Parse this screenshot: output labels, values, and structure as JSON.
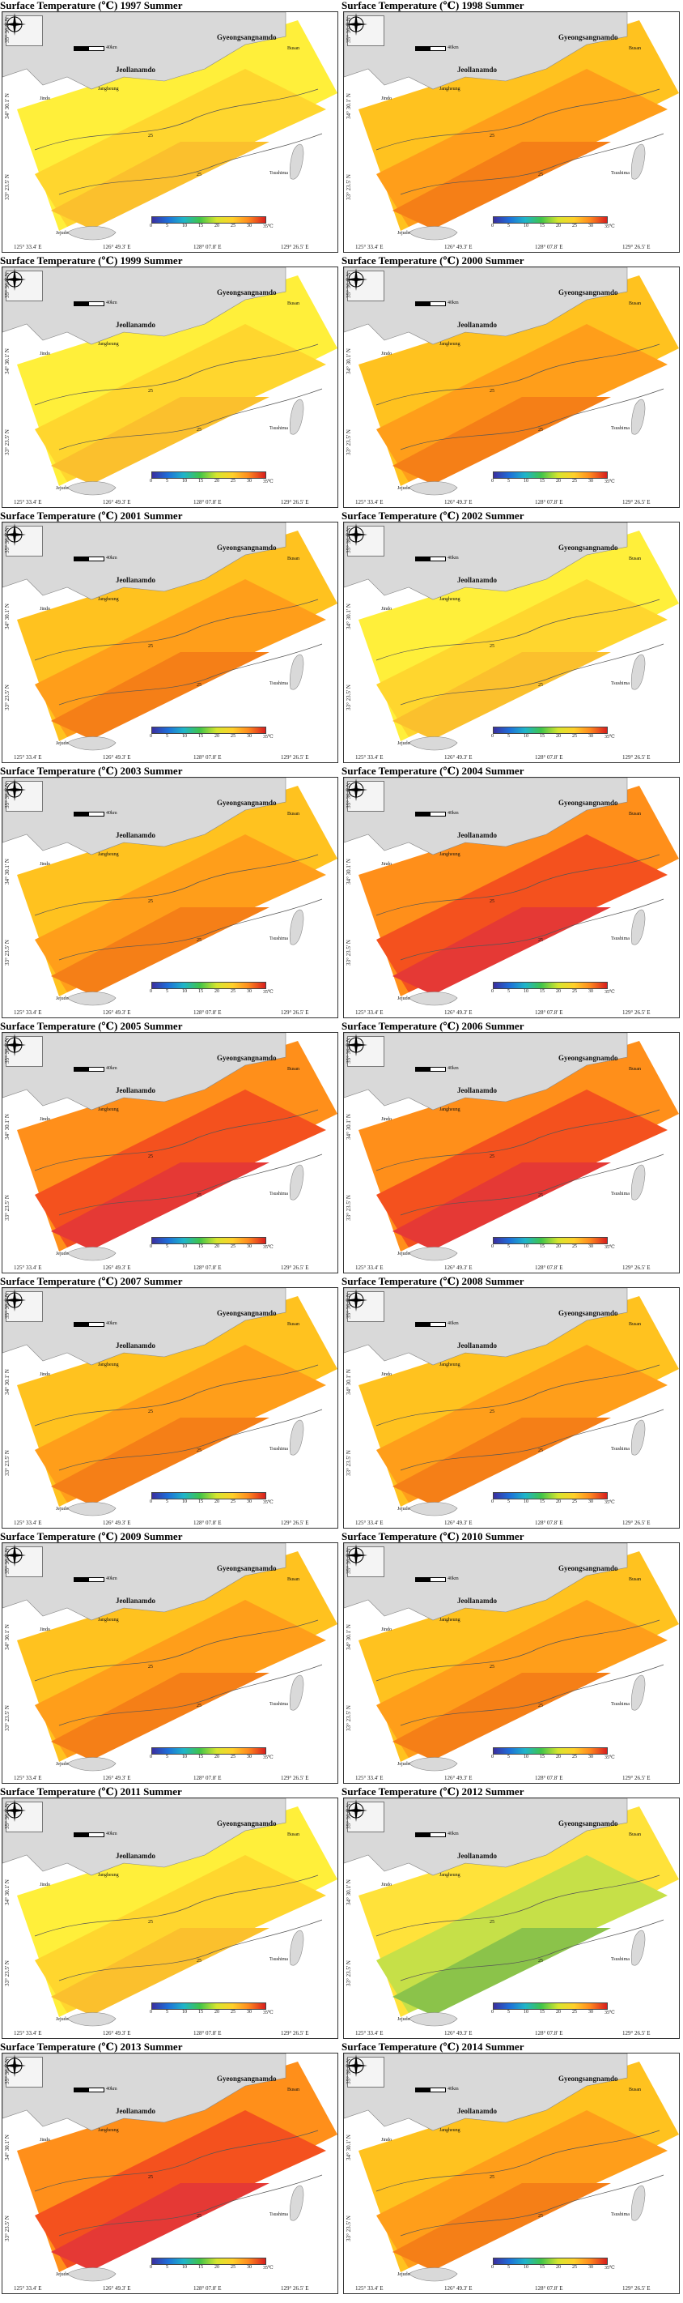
{
  "figure": {
    "panels": [
      {
        "title": "Surface Temperature (℃) 1997 Summer",
        "palette": "yellow"
      },
      {
        "title": "Surface Temperature (℃) 1998 Summer",
        "palette": "orange"
      },
      {
        "title": "Surface Temperature (℃) 1999 Summer",
        "palette": "yellow"
      },
      {
        "title": "Surface Temperature (℃) 2000 Summer",
        "palette": "orange"
      },
      {
        "title": "Surface Temperature (℃) 2001 Summer",
        "palette": "orange"
      },
      {
        "title": "Surface Temperature (℃) 2002 Summer",
        "palette": "yellow"
      },
      {
        "title": "Surface Temperature (℃) 2003 Summer",
        "palette": "orange"
      },
      {
        "title": "Surface Temperature (℃) 2004 Summer",
        "palette": "red"
      },
      {
        "title": "Surface Temperature (℃) 2005 Summer",
        "palette": "red"
      },
      {
        "title": "Surface Temperature (℃) 2006 Summer",
        "palette": "red"
      },
      {
        "title": "Surface Temperature (℃) 2007 Summer",
        "palette": "orange"
      },
      {
        "title": "Surface Temperature (℃) 2008 Summer",
        "palette": "orange"
      },
      {
        "title": "Surface Temperature (℃) 2009 Summer",
        "palette": "orange"
      },
      {
        "title": "Surface Temperature (℃) 2010 Summer",
        "palette": "orange"
      },
      {
        "title": "Surface Temperature (℃) 2011 Summer",
        "palette": "yellow"
      },
      {
        "title": "Surface Temperature (℃) 2012 Summer",
        "palette": "green"
      },
      {
        "title": "Surface Temperature (℃) 2013 Summer",
        "palette": "red"
      },
      {
        "title": "Surface Temperature (℃) 2014 Summer",
        "palette": "orange"
      }
    ],
    "places": {
      "province_west": "Jeollanamdo",
      "province_east": "Gyeongsangnamdo",
      "busan": "Busan",
      "tsushima": "Tsushima",
      "jejudo": "Jejudo",
      "jindo": "Jindo",
      "jangheung": "Jangheung"
    },
    "lat_labels": [
      "35° 36.0' N",
      "34° 30.1' N",
      "33° 23.5' N"
    ],
    "lon_labels": [
      "125° 33.4' E",
      "126° 49.3' E",
      "128° 07.8' E",
      "129° 26.5' E"
    ],
    "legend_ticks": [
      "0",
      "5",
      "10",
      "15",
      "20",
      "25",
      "30",
      "35℃"
    ],
    "contour_value": "25",
    "scale_text": "40km",
    "colors": {
      "land": "#d9d9d9",
      "yellow": [
        "#ffef3a",
        "#ffd62e",
        "#fbc02d"
      ],
      "orange": [
        "#ffc21f",
        "#ff9e1a",
        "#f57f17"
      ],
      "red": [
        "#ff8f1a",
        "#f4511e",
        "#e53935"
      ],
      "green": [
        "#ffe23a",
        "#c6e048",
        "#8bc34a"
      ]
    }
  }
}
